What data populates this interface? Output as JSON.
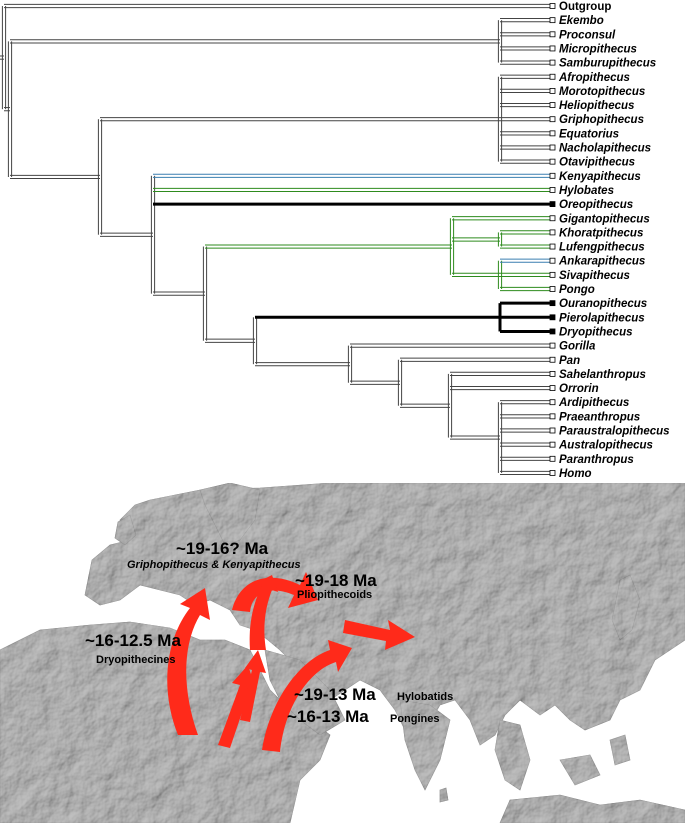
{
  "tree": {
    "taxa": [
      {
        "label": "Outgroup",
        "italic": false
      },
      {
        "label": "Ekembo",
        "italic": true
      },
      {
        "label": "Proconsul",
        "italic": true
      },
      {
        "label": "Micropithecus",
        "italic": true
      },
      {
        "label": "Samburupithecus",
        "italic": true
      },
      {
        "label": "Afropithecus",
        "italic": true
      },
      {
        "label": "Morotopithecus",
        "italic": true
      },
      {
        "label": "Heliopithecus",
        "italic": true
      },
      {
        "label": "Griphopithecus",
        "italic": true
      },
      {
        "label": "Equatorius",
        "italic": true
      },
      {
        "label": "Nacholapithecus",
        "italic": true
      },
      {
        "label": "Otavipithecus",
        "italic": true
      },
      {
        "label": "Kenyapithecus",
        "italic": true
      },
      {
        "label": "Hylobates",
        "italic": true
      },
      {
        "label": "Oreopithecus",
        "italic": true
      },
      {
        "label": "Gigantopithecus",
        "italic": true
      },
      {
        "label": "Khoratpithecus",
        "italic": true
      },
      {
        "label": "Lufengpithecus",
        "italic": true
      },
      {
        "label": "Ankarapithecus",
        "italic": true
      },
      {
        "label": "Sivapithecus",
        "italic": true
      },
      {
        "label": "Pongo",
        "italic": true
      },
      {
        "label": "Ouranopithecus",
        "italic": true
      },
      {
        "label": "Pierolapithecus",
        "italic": true
      },
      {
        "label": "Dryopithecus",
        "italic": true
      },
      {
        "label": "Gorilla",
        "italic": true
      },
      {
        "label": "Pan",
        "italic": true
      },
      {
        "label": "Sahelanthropus",
        "italic": true
      },
      {
        "label": "Orrorin",
        "italic": true
      },
      {
        "label": "Ardipithecus",
        "italic": true
      },
      {
        "label": "Praeanthropus",
        "italic": true
      },
      {
        "label": "Paraustralopithecus",
        "italic": true
      },
      {
        "label": "Australopithecus",
        "italic": true
      },
      {
        "label": "Paranthropus",
        "italic": true
      },
      {
        "label": "Homo",
        "italic": true
      }
    ],
    "colors": {
      "double_line": "#555555",
      "green_clade": "#2e8b1e",
      "blue_clade": "#3a7fb0",
      "black_clade": "#000000"
    }
  },
  "map": {
    "arrow_color": "#ff2a1a",
    "land_color": "#a9a9a9",
    "sea_color": "#ffffff",
    "labels": {
      "griph_age": "~19-16? Ma",
      "griph_taxa": "Griphopithecus & Kenyapithecus",
      "plio_age": "~19-18 Ma",
      "plio_taxa": "Pliopithecoids",
      "dryo_age": "~16-12.5 Ma",
      "dryo_taxa": "Dryopithecines",
      "hylo_age": "~19-13 Ma",
      "hylo_taxa": "Hylobatids",
      "pong_age": "~16-13 Ma",
      "pong_taxa": "Pongines"
    }
  }
}
